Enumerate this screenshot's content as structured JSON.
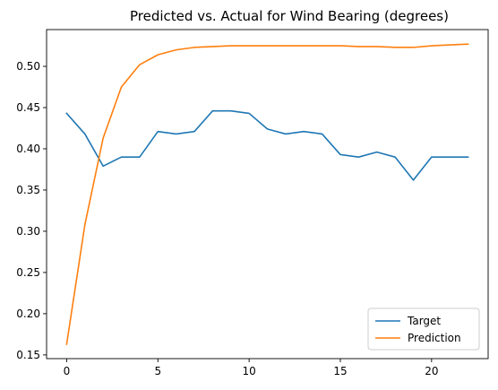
{
  "chart_data": {
    "type": "line",
    "title": "Predicted vs. Actual for Wind Bearing (degrees)",
    "xlabel": "",
    "ylabel": "",
    "xlim": [
      -1.1,
      23.1
    ],
    "ylim": [
      0.1455,
      0.5446
    ],
    "xticks": [
      0,
      5,
      10,
      15,
      20
    ],
    "yticks": [
      0.15,
      0.2,
      0.25,
      0.3,
      0.35,
      0.4,
      0.45,
      0.5
    ],
    "grid": false,
    "legend_position": "lower-right",
    "x": [
      0,
      1,
      2,
      3,
      4,
      5,
      6,
      7,
      8,
      9,
      10,
      11,
      12,
      13,
      14,
      15,
      16,
      17,
      18,
      19,
      20,
      21,
      22
    ],
    "series": [
      {
        "name": "Target",
        "color": "#1f77b4",
        "values": [
          0.443,
          0.418,
          0.379,
          0.39,
          0.39,
          0.421,
          0.418,
          0.421,
          0.446,
          0.446,
          0.443,
          0.424,
          0.418,
          0.421,
          0.418,
          0.393,
          0.39,
          0.396,
          0.39,
          0.362,
          0.39,
          0.39,
          0.39
        ]
      },
      {
        "name": "Prediction",
        "color": "#ff7f0e",
        "values": [
          0.163,
          0.308,
          0.413,
          0.475,
          0.502,
          0.514,
          0.52,
          0.523,
          0.524,
          0.525,
          0.525,
          0.525,
          0.525,
          0.525,
          0.525,
          0.525,
          0.524,
          0.524,
          0.523,
          0.523,
          0.525,
          0.526,
          0.527
        ]
      }
    ]
  }
}
